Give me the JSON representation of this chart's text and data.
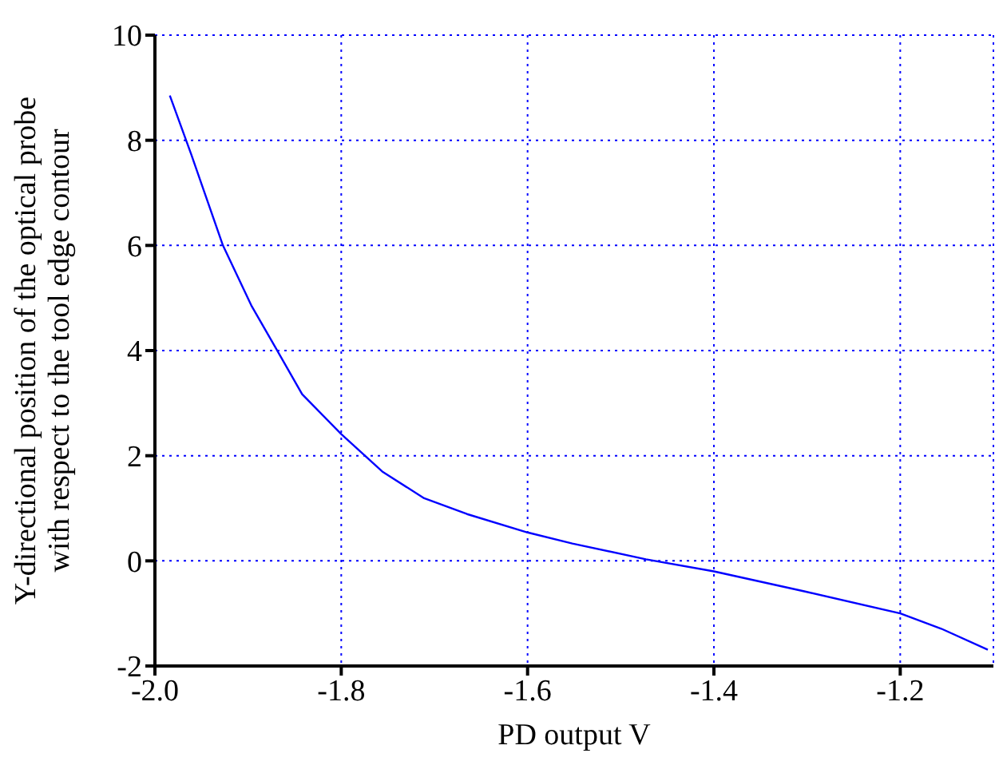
{
  "chart_data": {
    "type": "line",
    "xlabel": "PD output V",
    "ylabel": "Y-directional position of the optical probe\nwith respect to the tool edge contour",
    "x": [
      -1.984,
      -1.961,
      -1.927,
      -1.896,
      -1.87,
      -1.842,
      -1.8,
      -1.756,
      -1.711,
      -1.665,
      -1.6,
      -1.552,
      -1.473,
      -1.4,
      -1.303,
      -1.2,
      -1.156,
      -1.106
    ],
    "series": [
      {
        "color": "#0000ff",
        "values": [
          8.85,
          7.73,
          6.0,
          4.84,
          4.04,
          3.17,
          2.41,
          1.7,
          1.19,
          0.89,
          0.54,
          0.33,
          0.03,
          -0.2,
          -0.58,
          -1.0,
          -1.29,
          -1.69
        ]
      }
    ],
    "xlim": [
      -2.0,
      -1.1
    ],
    "xticks": [
      {
        "value": -2,
        "label": "-2.0"
      },
      -1.8,
      -1.6,
      -1.4,
      -1.2
    ],
    "ylim": [
      -2,
      10
    ],
    "yticks": [
      -2,
      0,
      2,
      4,
      6,
      8,
      10
    ],
    "grid": true,
    "legend": false,
    "marker": "none",
    "line_style": "solid"
  }
}
